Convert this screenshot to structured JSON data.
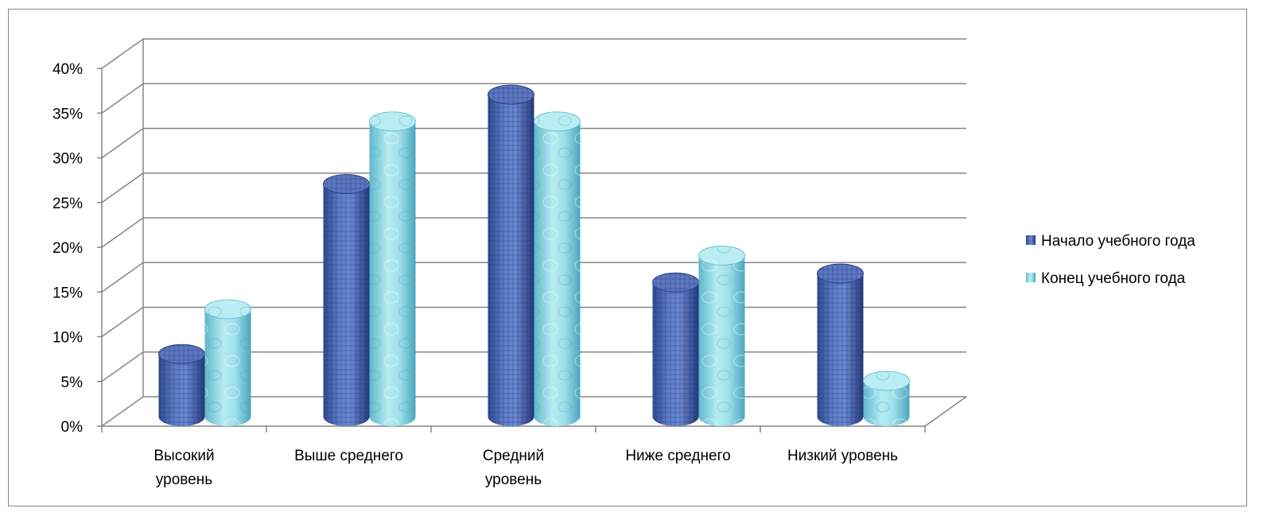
{
  "chart_data": {
    "type": "bar",
    "style": "3d-cylinder",
    "categories": [
      [
        "Высокий",
        "уровень"
      ],
      [
        "Выше среднего"
      ],
      [
        "Средний",
        "уровень"
      ],
      [
        "Ниже среднего"
      ],
      [
        "Низкий уровень"
      ]
    ],
    "series": [
      {
        "name": "Начало учебного года",
        "values": [
          7,
          26,
          36,
          15,
          16
        ],
        "color": "#4a67b5"
      },
      {
        "name": "Конец учебного года",
        "values": [
          12,
          33,
          33,
          18,
          4
        ],
        "color": "#7fcfe0"
      }
    ],
    "y_ticks": [
      "0%",
      "5%",
      "10%",
      "15%",
      "20%",
      "25%",
      "30%",
      "35%",
      "40%"
    ],
    "ylim": [
      0,
      40
    ],
    "grid": true,
    "legend_position": "right"
  }
}
